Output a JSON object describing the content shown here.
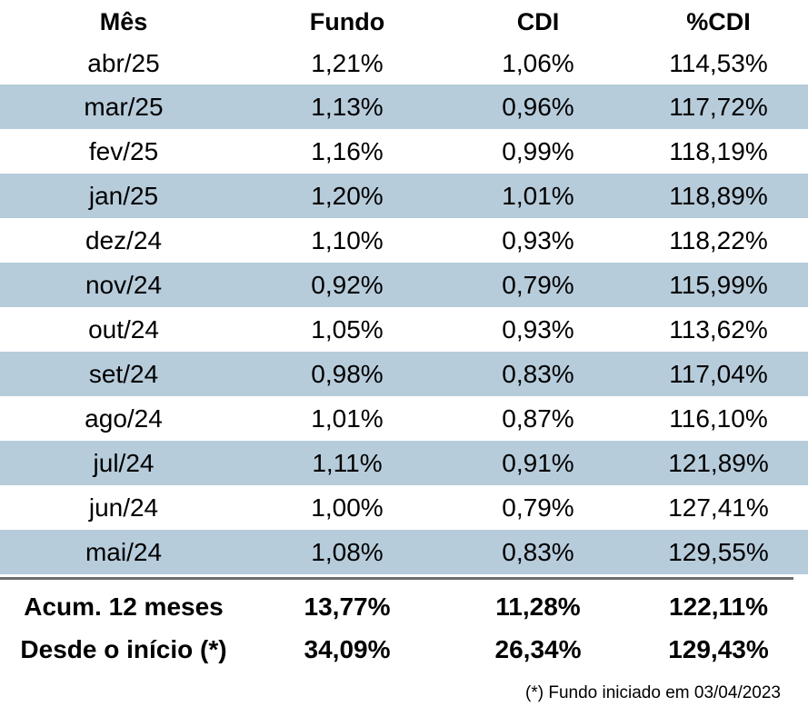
{
  "table": {
    "headers": [
      "Mês",
      "Fundo",
      "CDI",
      "%CDI"
    ],
    "rows": [
      {
        "mes": "abr/25",
        "fundo": "1,21%",
        "cdi": "1,06%",
        "pct_cdi": "114,53%"
      },
      {
        "mes": "mar/25",
        "fundo": "1,13%",
        "cdi": "0,96%",
        "pct_cdi": "117,72%"
      },
      {
        "mes": "fev/25",
        "fundo": "1,16%",
        "cdi": "0,99%",
        "pct_cdi": "118,19%"
      },
      {
        "mes": "jan/25",
        "fundo": "1,20%",
        "cdi": "1,01%",
        "pct_cdi": "118,89%"
      },
      {
        "mes": "dez/24",
        "fundo": "1,10%",
        "cdi": "0,93%",
        "pct_cdi": "118,22%"
      },
      {
        "mes": "nov/24",
        "fundo": "0,92%",
        "cdi": "0,79%",
        "pct_cdi": "115,99%"
      },
      {
        "mes": "out/24",
        "fundo": "1,05%",
        "cdi": "0,93%",
        "pct_cdi": "113,62%"
      },
      {
        "mes": "set/24",
        "fundo": "0,98%",
        "cdi": "0,83%",
        "pct_cdi": "117,04%"
      },
      {
        "mes": "ago/24",
        "fundo": "1,01%",
        "cdi": "0,87%",
        "pct_cdi": "116,10%"
      },
      {
        "mes": "jul/24",
        "fundo": "1,11%",
        "cdi": "0,91%",
        "pct_cdi": "121,89%"
      },
      {
        "mes": "jun/24",
        "fundo": "1,00%",
        "cdi": "0,79%",
        "pct_cdi": "127,41%"
      },
      {
        "mes": "mai/24",
        "fundo": "1,08%",
        "cdi": "0,83%",
        "pct_cdi": "129,55%"
      }
    ],
    "summary": [
      {
        "label": "Acum. 12 meses",
        "fundo": "13,77%",
        "cdi": "11,28%",
        "pct_cdi": "122,11%"
      },
      {
        "label": "Desde o início (*)",
        "fundo": "34,09%",
        "cdi": "26,34%",
        "pct_cdi": "129,43%"
      }
    ]
  },
  "footnote": "(*) Fundo iniciado em 03/04/2023",
  "colors": {
    "shaded_row": "#b7ccdb",
    "divider": "#6e6e6e"
  }
}
